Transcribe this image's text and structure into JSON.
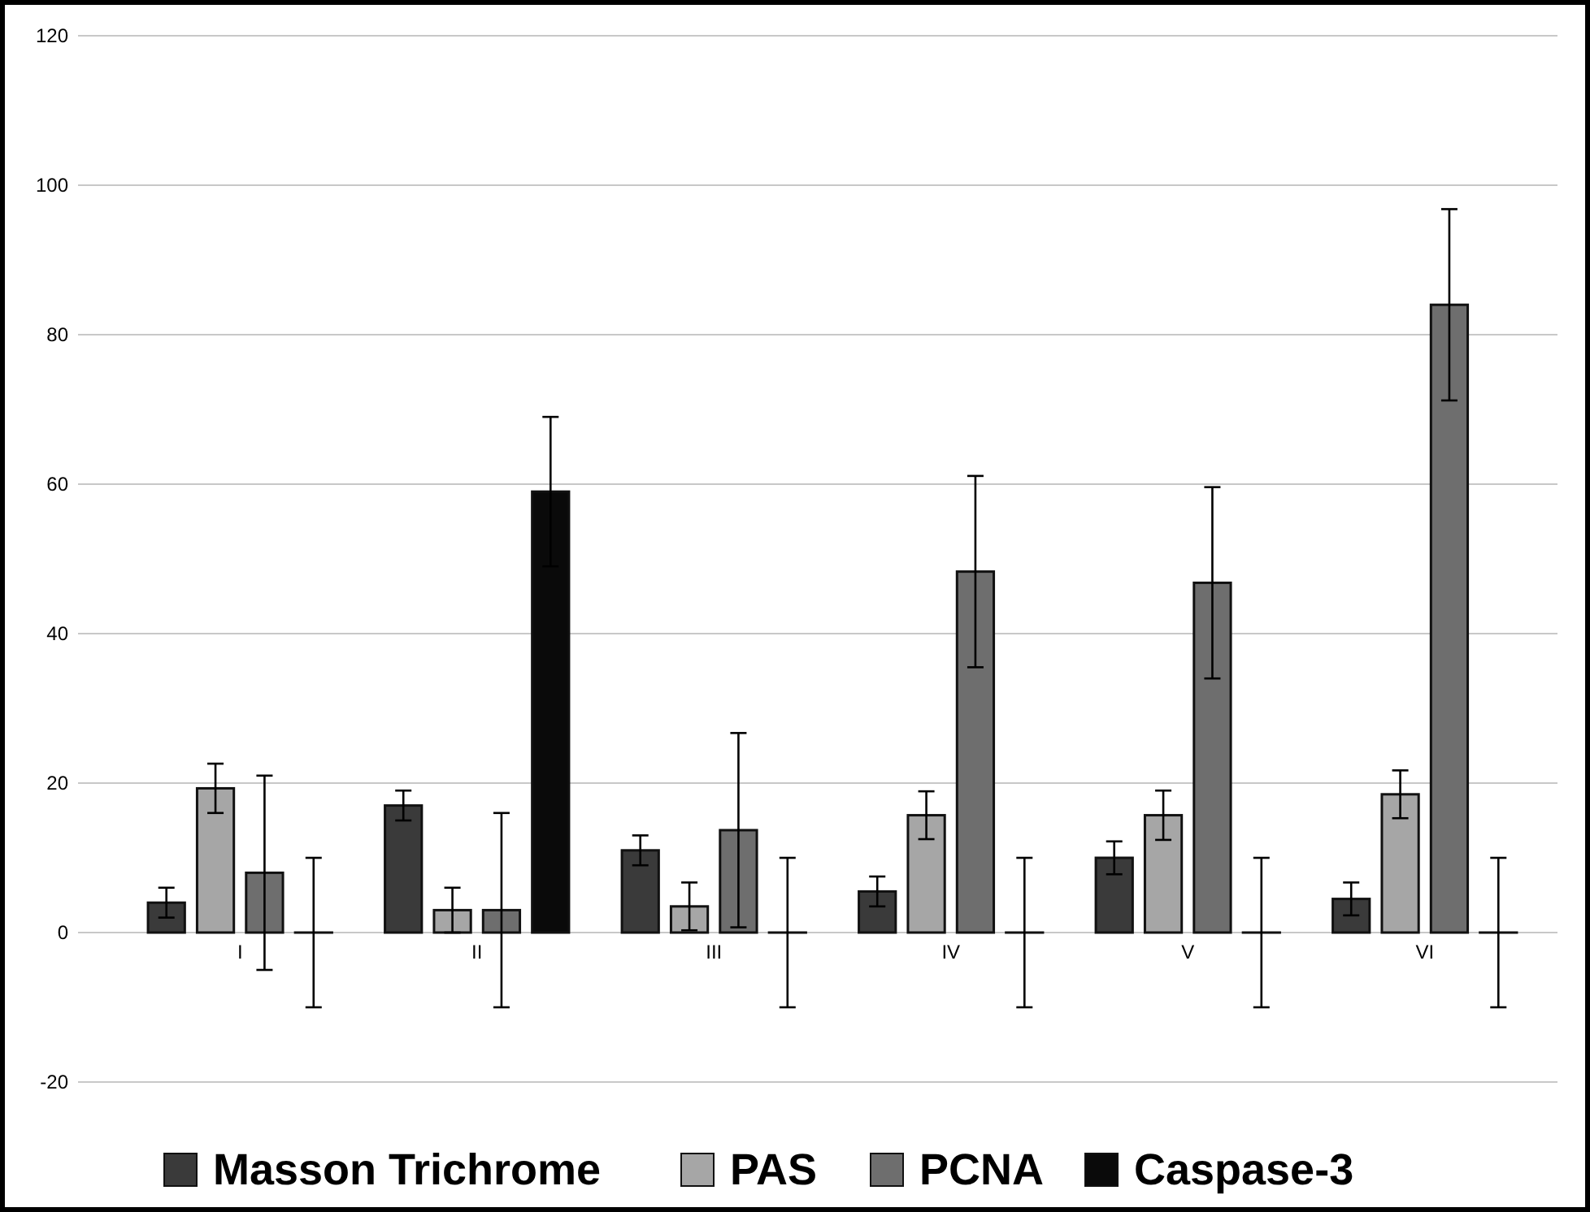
{
  "chart_data": {
    "type": "bar",
    "categories": [
      "I",
      "II",
      "III",
      "IV",
      "V",
      "VI"
    ],
    "series": [
      {
        "name": "Masson Trichrome",
        "color": "#3a3a3a",
        "values": [
          4,
          17,
          11,
          5.5,
          10,
          4.5
        ],
        "errors": [
          2,
          2,
          2,
          2,
          2.2,
          2.2
        ]
      },
      {
        "name": "PAS",
        "color": "#a6a6a6",
        "values": [
          19.3,
          3,
          3.5,
          15.7,
          15.7,
          18.5
        ],
        "errors": [
          3.3,
          3,
          3.2,
          3.2,
          3.3,
          3.2
        ]
      },
      {
        "name": "PCNA",
        "color": "#6e6e6e",
        "values": [
          8,
          3,
          13.7,
          48.3,
          46.8,
          84
        ],
        "errors": [
          13,
          13,
          13,
          12.8,
          12.8,
          12.8
        ]
      },
      {
        "name": "Caspase-3",
        "color": "#0a0a0a",
        "values": [
          0,
          59,
          0,
          0,
          0,
          0
        ],
        "errors": [
          10,
          10,
          10,
          10,
          10,
          10
        ]
      }
    ],
    "ylim": [
      -20,
      120
    ],
    "yticks": [
      -20,
      0,
      20,
      40,
      60,
      80,
      100,
      120
    ],
    "grid": "y",
    "legend": "bottom"
  }
}
